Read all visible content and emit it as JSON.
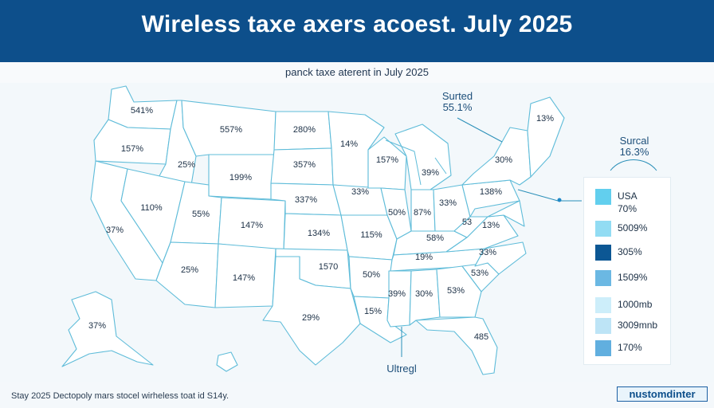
{
  "header": {
    "title": "Wireless taxe axers acoest. July 2025",
    "subtitle": "panck taxe aterent in July 2025"
  },
  "map": {
    "state_labels": [
      "541%",
      "157%",
      "557%",
      "280%",
      "14%",
      "157%",
      "13%",
      "25%",
      "199%",
      "357%",
      "39%",
      "30%",
      "110%",
      "55%",
      "337%",
      "33%",
      "50%",
      "87%",
      "33%",
      "138%",
      "37%",
      "147%",
      "134%",
      "115%",
      "53",
      "13%",
      "58%",
      "1570",
      "50%",
      "19%",
      "33%",
      "25%",
      "147%",
      "53%",
      "53%",
      "29%",
      "39%",
      "30%",
      "15%",
      "37%",
      "485"
    ],
    "callouts": [
      {
        "label": "Surted",
        "value": "55.1%"
      },
      {
        "label": "Surcal",
        "value": "16.3%"
      },
      {
        "label": "Ultregl"
      }
    ]
  },
  "legend": {
    "items": [
      {
        "label": "USA",
        "sublabel": "70%",
        "color": "#62cfee"
      },
      {
        "label": "5009%",
        "color": "#92dcf3"
      },
      {
        "label": "305%",
        "color": "#0c5794"
      },
      {
        "label": "1509%",
        "color": "#6bb8e3"
      },
      {
        "label": "1000mb",
        "color": "#cdeefa"
      },
      {
        "label": "3009mnb",
        "color": "#bde4f6"
      },
      {
        "label": "170%",
        "color": "#61afdf"
      }
    ]
  },
  "footer": {
    "note": "Stay 2025 Dectopoly mars stocel wirheless toat id S14y.",
    "brand": "nustomdinter"
  }
}
